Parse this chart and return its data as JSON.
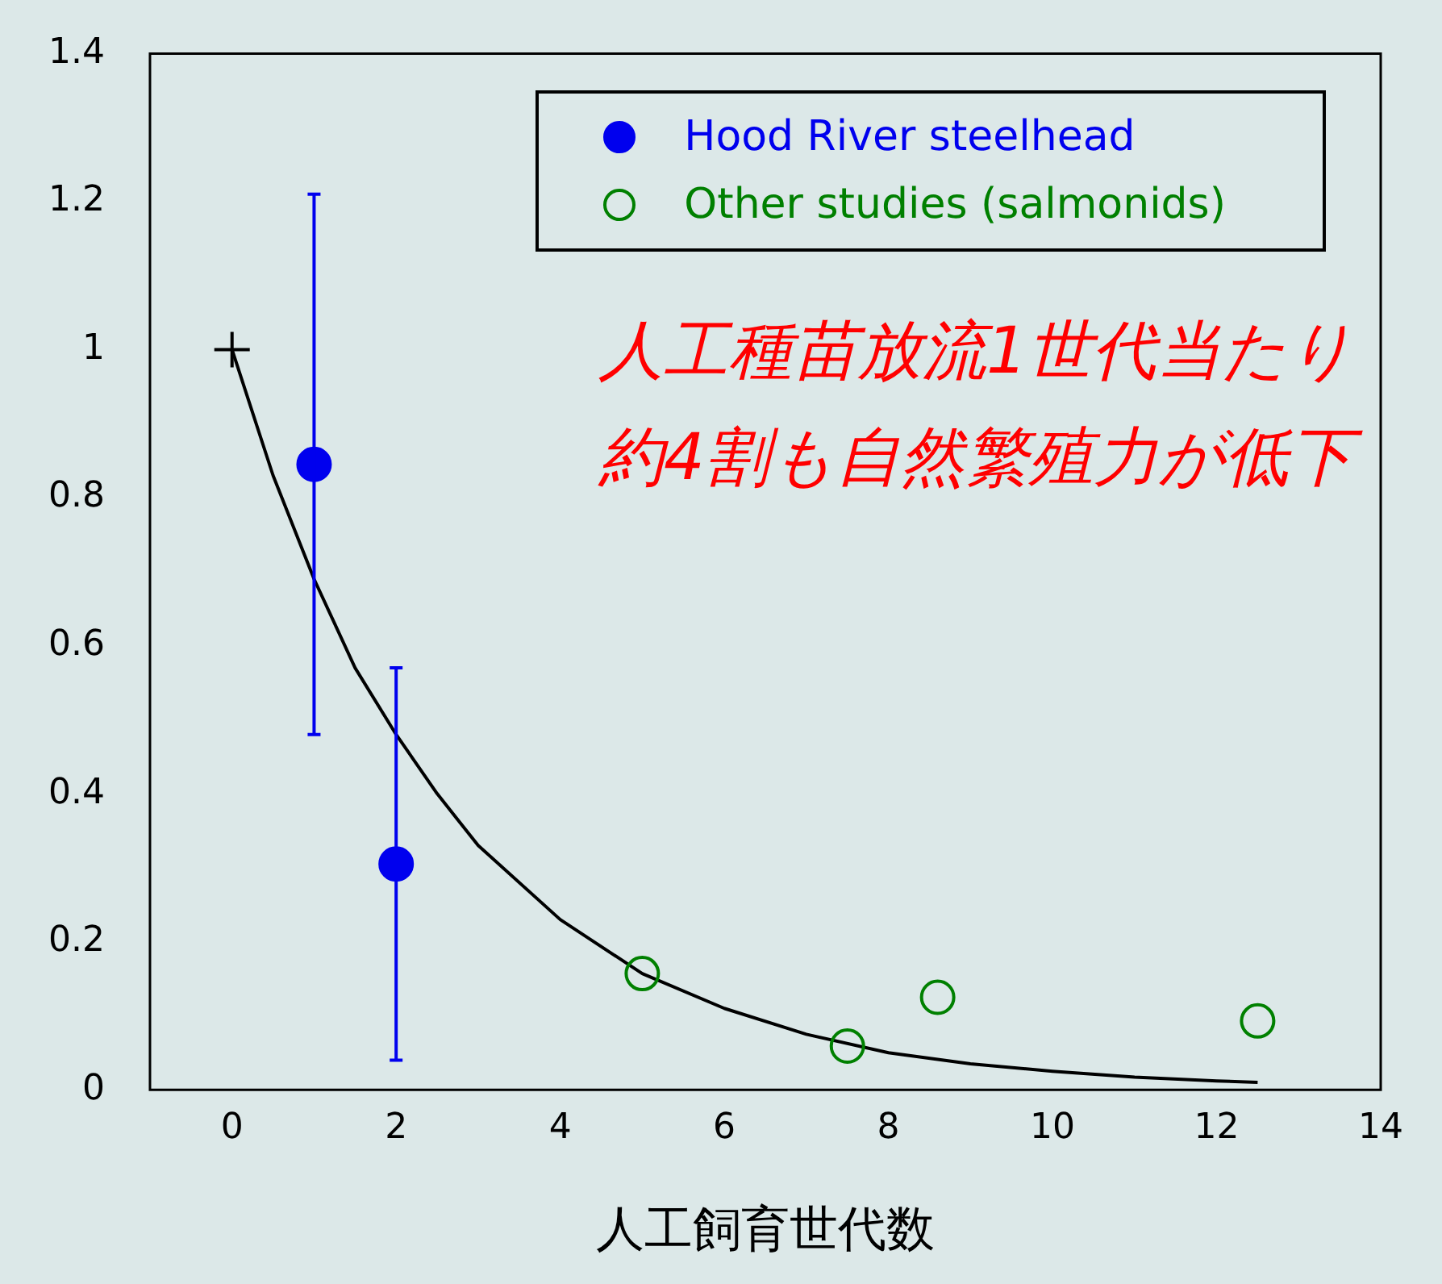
{
  "chart_data": {
    "type": "scatter",
    "xlabel": "人工飼育世代数",
    "annotations": [
      "人工種苗放流1世代当たり",
      "約4割も自然繁殖力が低下"
    ],
    "xlim": [
      -1,
      14
    ],
    "xticks": [
      0,
      2,
      4,
      6,
      8,
      10,
      12,
      14
    ],
    "ylim": [
      0,
      1.4
    ],
    "yticks": [
      0,
      0.2,
      0.4,
      0.6,
      0.8,
      1,
      1.2,
      1.4
    ],
    "grid": false,
    "legend": "top right",
    "series": [
      {
        "name": "Hood River steelhead",
        "type": "scatter",
        "marker": "circle",
        "color": "#0000ee",
        "x": [
          1,
          2
        ],
        "values": [
          0.845,
          0.305
        ],
        "errors": [
          [
            0.48,
            1.21
          ],
          [
            0.04,
            0.57
          ]
        ]
      },
      {
        "name": "Other studies (salmonids)",
        "type": "scatter",
        "marker": "circle",
        "color": "#008000",
        "x": [
          5,
          7.5,
          8.6,
          12.5
        ],
        "values": [
          0.157,
          0.059,
          0.125,
          0.093
        ]
      },
      {
        "type": "line",
        "marker": "none",
        "color": "#000000",
        "x": [
          0,
          0.5,
          1,
          1.5,
          2,
          2.5,
          3,
          4,
          5,
          6,
          7,
          8,
          9,
          10,
          11,
          12,
          12.5
        ],
        "values": [
          1,
          0.83,
          0.69,
          0.57,
          0.48,
          0.4,
          0.33,
          0.23,
          0.157,
          0.11,
          0.075,
          0.05,
          0.035,
          0.025,
          0.017,
          0.012,
          0.01
        ]
      },
      {
        "type": "scatter",
        "marker": "cross",
        "color": "#000000",
        "x": [
          0
        ],
        "values": [
          1
        ]
      }
    ]
  }
}
